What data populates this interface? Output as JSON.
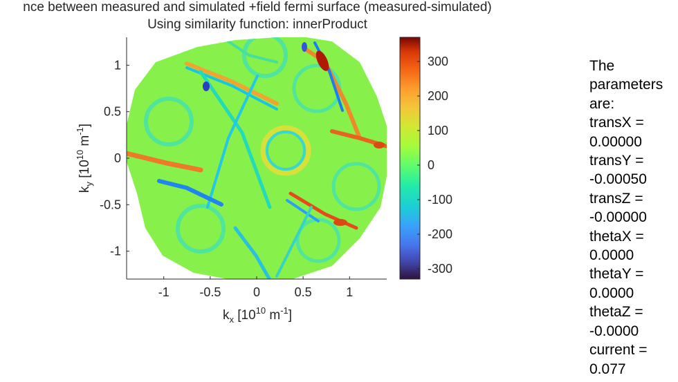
{
  "chart_data": {
    "type": "heatmap",
    "title": "nce between measured and simulated +field fermi surface (measured-simulated)",
    "subtitle": "Using similarity function: innerProduct",
    "xlabel": {
      "base": "k",
      "sub": "x",
      "unit_pre": "[10",
      "unit_exp": "10",
      "unit_mid": " m",
      "unit_exp2": "-1",
      "unit_post": "]"
    },
    "ylabel": {
      "base": "k",
      "sub": "y",
      "unit_pre": "[10",
      "unit_exp": "10",
      "unit_mid": " m",
      "unit_exp2": "-1",
      "unit_post": "]"
    },
    "xlim": [
      -1.4,
      1.4
    ],
    "ylim": [
      -1.3,
      1.3
    ],
    "xticks": [
      -1,
      -0.5,
      0,
      0.5,
      1
    ],
    "xtick_labels": [
      "-1",
      "-0.5",
      "0",
      "0.5",
      "1"
    ],
    "yticks": [
      1,
      0.5,
      0,
      -0.5,
      -1
    ],
    "ytick_labels": [
      "1",
      "0.5",
      "0",
      "-0.5",
      "-1"
    ],
    "colorbar": {
      "clim": [
        -330,
        370
      ],
      "ticks": [
        300,
        200,
        100,
        0,
        -100,
        -200,
        -300
      ],
      "tick_labels": [
        "300",
        "200",
        "100",
        "0",
        "-100",
        "-200",
        "-300"
      ],
      "colormap": "turbo"
    },
    "data_region": "roughly circular, radius ~1.35, values mostly ~0 with ring and line features between about -300 and +370",
    "background_value": 0
  },
  "params_text": "The\nparameters\nare:\ntransX =\n0.00000\ntransY =\n-0.00050\ntransZ =\n-0.00000\nthetaX =\n0.0000\nthetaY =\n0.0000\nthetaZ =\n-0.0000\ncurrent =\n0.077"
}
